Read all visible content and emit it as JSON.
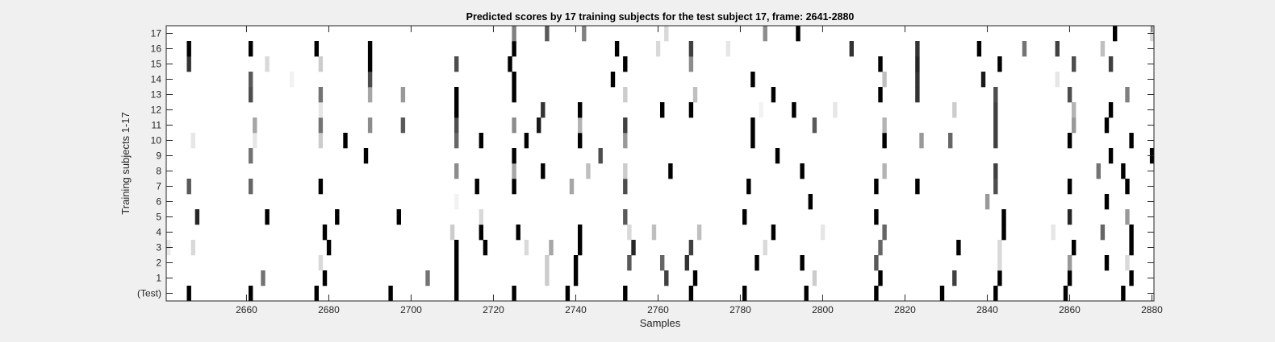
{
  "chart_data": {
    "type": "heatmap",
    "title": "Predicted scores by 17 training subjects for the test subject 17, frame: 2641-2880",
    "xlabel": "Samples",
    "ylabel": "Training subjects 1-17",
    "xlim": [
      2641,
      2880
    ],
    "x_ticks": [
      "2660",
      "2680",
      "2700",
      "2720",
      "2740",
      "2760",
      "2780",
      "2800",
      "2820",
      "2840",
      "2860",
      "2880"
    ],
    "rows": [
      "(Test)",
      "1",
      "2",
      "3",
      "4",
      "5",
      "6",
      "7",
      "8",
      "9",
      "10",
      "11",
      "12",
      "13",
      "14",
      "15",
      "16",
      "17"
    ],
    "colormap": "gray-inverted",
    "value_range": [
      0,
      1
    ],
    "rows_data": [
      [
        [
          2646,
          1
        ],
        [
          2661,
          1
        ],
        [
          2677,
          1
        ],
        [
          2695,
          1
        ],
        [
          2711,
          1
        ],
        [
          2725,
          1
        ],
        [
          2738,
          1
        ],
        [
          2752,
          1
        ],
        [
          2768,
          1
        ],
        [
          2781,
          1
        ],
        [
          2796,
          1
        ],
        [
          2813,
          1
        ],
        [
          2829,
          1
        ],
        [
          2842,
          1
        ],
        [
          2859,
          1
        ],
        [
          2873,
          1
        ]
      ],
      [
        [
          2664,
          0.55
        ],
        [
          2679,
          1
        ],
        [
          2704,
          0.55
        ],
        [
          2711,
          1
        ],
        [
          2733,
          0.2
        ],
        [
          2740,
          1
        ],
        [
          2762,
          0.75
        ],
        [
          2769,
          1
        ],
        [
          2798,
          0.2
        ],
        [
          2814,
          1
        ],
        [
          2832,
          0.75
        ],
        [
          2843,
          1
        ],
        [
          2860,
          1
        ],
        [
          2875,
          1
        ]
      ],
      [
        [
          2678,
          0.15
        ],
        [
          2711,
          1
        ],
        [
          2733,
          0.2
        ],
        [
          2740,
          1
        ],
        [
          2753,
          0.65
        ],
        [
          2761,
          0.6
        ],
        [
          2767,
          0.8
        ],
        [
          2784,
          1
        ],
        [
          2795,
          1
        ],
        [
          2813,
          0.65
        ],
        [
          2843,
          0.15
        ],
        [
          2860,
          0.4
        ],
        [
          2869,
          1
        ],
        [
          2874,
          0.15
        ]
      ],
      [
        [
          2641,
          0.08
        ],
        [
          2647,
          0.15
        ],
        [
          2680,
          1
        ],
        [
          2711,
          1
        ],
        [
          2718,
          1
        ],
        [
          2728,
          0.15
        ],
        [
          2734,
          0.35
        ],
        [
          2741,
          1
        ],
        [
          2754,
          0.85
        ],
        [
          2768,
          0.75
        ],
        [
          2786,
          0.15
        ],
        [
          2814,
          0.6
        ],
        [
          2833,
          1
        ],
        [
          2843,
          0.15
        ],
        [
          2861,
          1
        ],
        [
          2875,
          1
        ]
      ],
      [
        [
          2679,
          1
        ],
        [
          2710,
          0.2
        ],
        [
          2717,
          1
        ],
        [
          2726,
          1
        ],
        [
          2741,
          1
        ],
        [
          2753,
          0.15
        ],
        [
          2759,
          0.25
        ],
        [
          2770,
          0.25
        ],
        [
          2788,
          1
        ],
        [
          2800,
          0.1
        ],
        [
          2815,
          0.6
        ],
        [
          2844,
          1
        ],
        [
          2856,
          0.1
        ],
        [
          2868,
          0.6
        ],
        [
          2875,
          1
        ]
      ],
      [
        [
          2648,
          0.85
        ],
        [
          2665,
          1
        ],
        [
          2682,
          1
        ],
        [
          2697,
          1
        ],
        [
          2717,
          0.15
        ],
        [
          2752,
          0.65
        ],
        [
          2781,
          1
        ],
        [
          2813,
          1
        ],
        [
          2844,
          1
        ],
        [
          2860,
          0.85
        ],
        [
          2874,
          0.4
        ]
      ],
      [
        [
          2711,
          0.05
        ],
        [
          2797,
          1
        ],
        [
          2840,
          0.4
        ],
        [
          2869,
          1
        ]
      ],
      [
        [
          2646,
          0.65
        ],
        [
          2661,
          0.6
        ],
        [
          2678,
          1
        ],
        [
          2716,
          1
        ],
        [
          2725,
          1
        ],
        [
          2739,
          0.35
        ],
        [
          2752,
          0.7
        ],
        [
          2782,
          1
        ],
        [
          2813,
          1
        ],
        [
          2823,
          1
        ],
        [
          2842,
          0.7
        ],
        [
          2860,
          1
        ],
        [
          2874,
          1
        ]
      ],
      [
        [
          2711,
          0.45
        ],
        [
          2725,
          0.35
        ],
        [
          2732,
          1
        ],
        [
          2743,
          0.25
        ],
        [
          2752,
          0.2
        ],
        [
          2763,
          1
        ],
        [
          2795,
          1
        ],
        [
          2815,
          0.3
        ],
        [
          2842,
          0.75
        ],
        [
          2867,
          0.55
        ],
        [
          2873,
          1
        ]
      ],
      [
        [
          2661,
          0.55
        ],
        [
          2689,
          1
        ],
        [
          2725,
          1
        ],
        [
          2746,
          0.7
        ],
        [
          2789,
          1
        ],
        [
          2870,
          1
        ],
        [
          2880,
          1
        ]
      ],
      [
        [
          2647,
          0.1
        ],
        [
          2662,
          0.1
        ],
        [
          2678,
          0.2
        ],
        [
          2684,
          1
        ],
        [
          2711,
          0.6
        ],
        [
          2717,
          1
        ],
        [
          2728,
          1
        ],
        [
          2741,
          1
        ],
        [
          2752,
          0.4
        ],
        [
          2783,
          1
        ],
        [
          2815,
          1
        ],
        [
          2824,
          0.4
        ],
        [
          2831,
          0.6
        ],
        [
          2842,
          0.75
        ],
        [
          2860,
          1
        ],
        [
          2875,
          1
        ]
      ],
      [
        [
          2662,
          0.35
        ],
        [
          2678,
          0.55
        ],
        [
          2690,
          0.45
        ],
        [
          2698,
          0.65
        ],
        [
          2711,
          0.7
        ],
        [
          2725,
          0.45
        ],
        [
          2731,
          0.9
        ],
        [
          2741,
          0.3
        ],
        [
          2752,
          0.75
        ],
        [
          2783,
          1
        ],
        [
          2798,
          0.65
        ],
        [
          2815,
          0.3
        ],
        [
          2842,
          0.75
        ],
        [
          2861,
          0.4
        ],
        [
          2869,
          1
        ]
      ],
      [
        [
          2678,
          0.1
        ],
        [
          2711,
          1
        ],
        [
          2732,
          0.8
        ],
        [
          2741,
          1
        ],
        [
          2761,
          1
        ],
        [
          2768,
          1
        ],
        [
          2785,
          0.05
        ],
        [
          2793,
          1
        ],
        [
          2803,
          0.1
        ],
        [
          2832,
          0.2
        ],
        [
          2842,
          0.75
        ],
        [
          2861,
          0.3
        ],
        [
          2870,
          1
        ]
      ],
      [
        [
          2661,
          0.7
        ],
        [
          2678,
          0.55
        ],
        [
          2690,
          0.35
        ],
        [
          2698,
          0.4
        ],
        [
          2711,
          1
        ],
        [
          2725,
          1
        ],
        [
          2752,
          0.2
        ],
        [
          2769,
          0.25
        ],
        [
          2788,
          1
        ],
        [
          2814,
          1
        ],
        [
          2823,
          0.8
        ],
        [
          2842,
          0.7
        ],
        [
          2860,
          0.7
        ],
        [
          2874,
          0.5
        ]
      ],
      [
        [
          2661,
          0.65
        ],
        [
          2671,
          0.05
        ],
        [
          2690,
          0.7
        ],
        [
          2725,
          1
        ],
        [
          2749,
          1
        ],
        [
          2783,
          1
        ],
        [
          2815,
          0.25
        ],
        [
          2823,
          0.8
        ],
        [
          2839,
          0.9
        ],
        [
          2857,
          0.1
        ]
      ],
      [
        [
          2646,
          0.8
        ],
        [
          2665,
          0.15
        ],
        [
          2678,
          0.2
        ],
        [
          2690,
          1
        ],
        [
          2711,
          0.7
        ],
        [
          2724,
          1
        ],
        [
          2752,
          1
        ],
        [
          2768,
          0.45
        ],
        [
          2814,
          1
        ],
        [
          2823,
          0.85
        ],
        [
          2843,
          1
        ],
        [
          2861,
          0.7
        ],
        [
          2870,
          0.75
        ]
      ],
      [
        [
          2646,
          1
        ],
        [
          2661,
          1
        ],
        [
          2677,
          1
        ],
        [
          2690,
          1
        ],
        [
          2725,
          1
        ],
        [
          2750,
          1
        ],
        [
          2760,
          0.15
        ],
        [
          2768,
          0.75
        ],
        [
          2777,
          0.1
        ],
        [
          2807,
          0.8
        ],
        [
          2823,
          0.8
        ],
        [
          2838,
          1
        ],
        [
          2849,
          0.55
        ],
        [
          2857,
          0.75
        ],
        [
          2868,
          0.25
        ]
      ],
      [
        [
          2725,
          0.5
        ],
        [
          2733,
          0.65
        ],
        [
          2742,
          0.5
        ],
        [
          2762,
          0.15
        ],
        [
          2786,
          0.45
        ],
        [
          2794,
          1
        ],
        [
          2871,
          1
        ],
        [
          2880,
          0.15
        ]
      ]
    ]
  }
}
